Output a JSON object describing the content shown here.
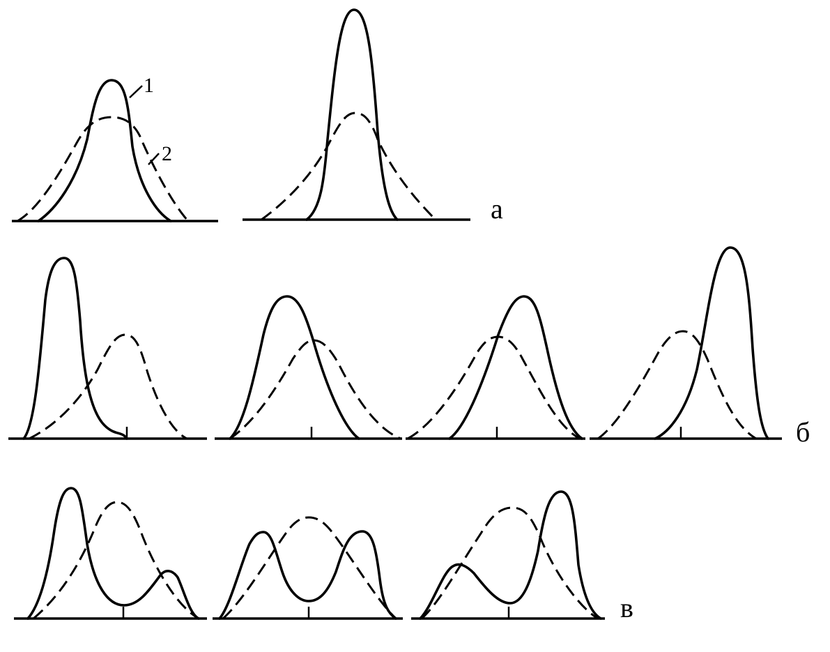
{
  "row_labels": {
    "a": "а",
    "b": "б",
    "c": "в"
  },
  "curve_labels": {
    "solid": "1",
    "dashed": "2"
  },
  "colors": {
    "ink": "#000000",
    "background": "#ffffff"
  },
  "line_styles": {
    "curve_1": "solid",
    "curve_2": "dashed"
  }
}
